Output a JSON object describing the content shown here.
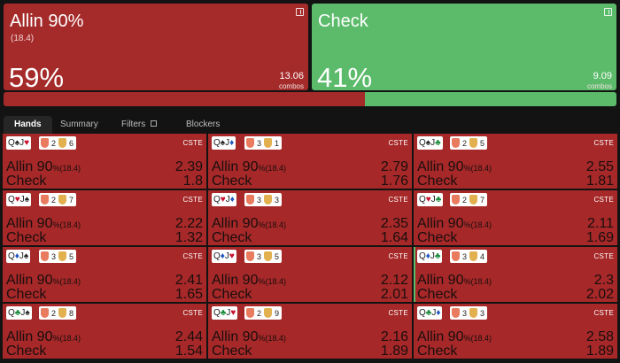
{
  "actions": [
    {
      "name": "Allin 90%",
      "sub": "(18.4)",
      "pct": "59%",
      "combos": "13.06",
      "combos_label": "combos",
      "color": "#a52a2a"
    },
    {
      "name": "Check",
      "sub": "",
      "pct": "41%",
      "combos": "9.09",
      "combos_label": "combos",
      "color": "#5cbb6b"
    }
  ],
  "frequency_bar": {
    "allin_fraction": 0.59,
    "check_fraction": 0.41
  },
  "tabs": [
    "Hands",
    "Summary",
    "Filters",
    "Blockers"
  ],
  "cell_labels": {
    "allin": "Allin 90",
    "allin_unit": "%",
    "allin_size": "(18.4)",
    "check": "Check",
    "tag": "CSTE"
  },
  "hands": [
    {
      "cards": [
        {
          "rank": "Q",
          "suit": "♠",
          "color": "#222"
        },
        {
          "rank": "J",
          "suit": "♥",
          "color": "#c8102e"
        }
      ],
      "blockers": [
        "2",
        "6"
      ],
      "allin": "2.39",
      "check": "1.8",
      "check_fraction": 0
    },
    {
      "cards": [
        {
          "rank": "Q",
          "suit": "♠",
          "color": "#222"
        },
        {
          "rank": "J",
          "suit": "♦",
          "color": "#1f56c2"
        }
      ],
      "blockers": [
        "3",
        "1"
      ],
      "allin": "2.79",
      "check": "1.76",
      "check_fraction": 0
    },
    {
      "cards": [
        {
          "rank": "Q",
          "suit": "♠",
          "color": "#222"
        },
        {
          "rank": "J",
          "suit": "♣",
          "color": "#1b8a3a"
        }
      ],
      "blockers": [
        "2",
        "5"
      ],
      "allin": "2.55",
      "check": "1.81",
      "check_fraction": 0
    },
    {
      "cards": [
        {
          "rank": "Q",
          "suit": "♥",
          "color": "#c8102e"
        },
        {
          "rank": "J",
          "suit": "♠",
          "color": "#222"
        }
      ],
      "blockers": [
        "2",
        "7"
      ],
      "allin": "2.22",
      "check": "1.32",
      "check_fraction": 0
    },
    {
      "cards": [
        {
          "rank": "Q",
          "suit": "♥",
          "color": "#c8102e"
        },
        {
          "rank": "J",
          "suit": "♦",
          "color": "#1f56c2"
        }
      ],
      "blockers": [
        "3",
        "3"
      ],
      "allin": "2.35",
      "check": "1.64",
      "check_fraction": 0
    },
    {
      "cards": [
        {
          "rank": "Q",
          "suit": "♥",
          "color": "#c8102e"
        },
        {
          "rank": "J",
          "suit": "♣",
          "color": "#1b8a3a"
        }
      ],
      "blockers": [
        "2",
        "7"
      ],
      "allin": "2.11",
      "check": "1.69",
      "check_fraction": 0
    },
    {
      "cards": [
        {
          "rank": "Q",
          "suit": "♦",
          "color": "#1f56c2"
        },
        {
          "rank": "J",
          "suit": "♠",
          "color": "#222"
        }
      ],
      "blockers": [
        "3",
        "5"
      ],
      "allin": "2.41",
      "check": "1.65",
      "check_fraction": 0
    },
    {
      "cards": [
        {
          "rank": "Q",
          "suit": "♦",
          "color": "#1f56c2"
        },
        {
          "rank": "J",
          "suit": "♥",
          "color": "#c8102e"
        }
      ],
      "blockers": [
        "3",
        "5"
      ],
      "allin": "2.12",
      "check": "2.01",
      "check_fraction": 0
    },
    {
      "cards": [
        {
          "rank": "Q",
          "suit": "♦",
          "color": "#1f56c2"
        },
        {
          "rank": "J",
          "suit": "♣",
          "color": "#1b8a3a"
        }
      ],
      "blockers": [
        "3",
        "4"
      ],
      "allin": "2.3",
      "check": "2.02",
      "check_fraction": 0.01
    },
    {
      "cards": [
        {
          "rank": "Q",
          "suit": "♣",
          "color": "#1b8a3a"
        },
        {
          "rank": "J",
          "suit": "♠",
          "color": "#222"
        }
      ],
      "blockers": [
        "2",
        "8"
      ],
      "allin": "2.44",
      "check": "1.54",
      "check_fraction": 0
    },
    {
      "cards": [
        {
          "rank": "Q",
          "suit": "♣",
          "color": "#1b8a3a"
        },
        {
          "rank": "J",
          "suit": "♥",
          "color": "#c8102e"
        }
      ],
      "blockers": [
        "2",
        "9"
      ],
      "allin": "2.16",
      "check": "1.89",
      "check_fraction": 0
    },
    {
      "cards": [
        {
          "rank": "Q",
          "suit": "♣",
          "color": "#1b8a3a"
        },
        {
          "rank": "J",
          "suit": "♦",
          "color": "#1f56c2"
        }
      ],
      "blockers": [
        "3",
        "3"
      ],
      "allin": "2.58",
      "check": "1.89",
      "check_fraction": 0
    }
  ]
}
